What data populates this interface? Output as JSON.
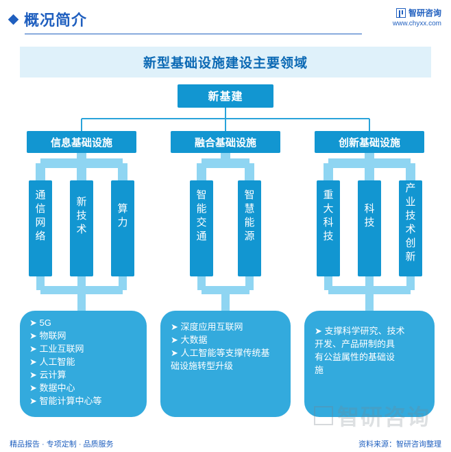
{
  "header": {
    "title": "概况简介",
    "brand": "智研咨询",
    "url": "www.chyxx.com"
  },
  "banner": "新型基础设施建设主要领域",
  "diagram": {
    "root": "新基建",
    "colors": {
      "primary": "#1296d1",
      "light": "#6dc6ea",
      "connector": "#8fd5f2",
      "bubble": "#33aadd",
      "text": "#ffffff"
    },
    "branches": [
      {
        "label": "信息基础设施",
        "cols": [
          "通信网络",
          "新技术",
          "算力"
        ],
        "details": [
          "5G",
          "物联网",
          "工业互联网",
          "人工智能",
          "云计算",
          "数据中心",
          "智能计算中心等"
        ]
      },
      {
        "label": "融合基础设施",
        "cols": [
          "智能交通",
          "智慧能源"
        ],
        "details": [
          "深度应用互联网",
          "大数据",
          "人工智能等支撑传统基础设施转型升级"
        ]
      },
      {
        "label": "创新基础设施",
        "cols": [
          "重大科技",
          "科技",
          "产业技术创新"
        ],
        "details": [
          "支撑科学研究、技术开发、产品研制的具有公益属性的基础设施"
        ]
      }
    ]
  },
  "footer": {
    "left": "精品报告 · 专项定制 · 品质服务",
    "right": "资料来源：智研咨询整理"
  },
  "watermark": "智研咨询"
}
